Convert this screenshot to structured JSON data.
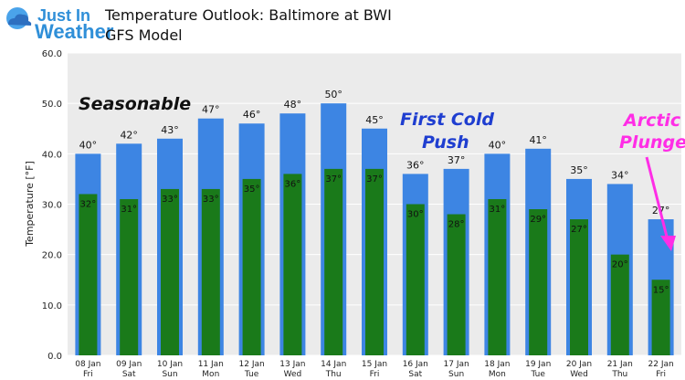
{
  "logo": {
    "line1": "Just In",
    "line2": "Weather"
  },
  "chart_data": {
    "type": "bar",
    "title": "Temperature Outlook: Baltimore at BWI",
    "subtitle": "GFS Model",
    "ylabel": "Temperature [°F]",
    "ylim": [
      0,
      60
    ],
    "yticks": [
      "0.0",
      "10.0",
      "20.0",
      "30.0",
      "40.0",
      "50.0",
      "60.0"
    ],
    "grid": true,
    "categories": [
      {
        "date": "08 Jan",
        "day": "Fri"
      },
      {
        "date": "09 Jan",
        "day": "Sat"
      },
      {
        "date": "10 Jan",
        "day": "Sun"
      },
      {
        "date": "11 Jan",
        "day": "Mon"
      },
      {
        "date": "12 Jan",
        "day": "Tue"
      },
      {
        "date": "13 Jan",
        "day": "Wed"
      },
      {
        "date": "14 Jan",
        "day": "Thu"
      },
      {
        "date": "15 Jan",
        "day": "Fri"
      },
      {
        "date": "16 Jan",
        "day": "Sat"
      },
      {
        "date": "17 Jan",
        "day": "Sun"
      },
      {
        "date": "18 Jan",
        "day": "Mon"
      },
      {
        "date": "19 Jan",
        "day": "Tue"
      },
      {
        "date": "20 Jan",
        "day": "Wed"
      },
      {
        "date": "21 Jan",
        "day": "Thu"
      },
      {
        "date": "22 Jan",
        "day": "Fri"
      }
    ],
    "series": [
      {
        "values": [
          40,
          42,
          43,
          47,
          46,
          48,
          50,
          45,
          36,
          37,
          40,
          41,
          35,
          34,
          27
        ],
        "labels": [
          "40°",
          "42°",
          "43°",
          "47°",
          "46°",
          "48°",
          "50°",
          "45°",
          "36°",
          "37°",
          "40°",
          "41°",
          "35°",
          "34°",
          "27°"
        ],
        "color": "#3d85e3"
      },
      {
        "values": [
          32,
          31,
          33,
          33,
          35,
          36,
          37,
          37,
          30,
          28,
          31,
          29,
          27,
          20,
          15
        ],
        "labels": [
          "32°",
          "31°",
          "33°",
          "33°",
          "35°",
          "36°",
          "37°",
          "37°",
          "30°",
          "28°",
          "31°",
          "29°",
          "27°",
          "20°",
          "15°"
        ],
        "color": "#1a7a1a"
      }
    ],
    "annotations": [
      {
        "text": "Seasonable",
        "color": "#111111"
      },
      {
        "text": "First Cold",
        "color": "#1f3ed0"
      },
      {
        "text": "Push",
        "color": "#1f3ed0"
      },
      {
        "text": "Arctic",
        "color": "#ff2de6"
      },
      {
        "text": "Plunge",
        "color": "#ff2de6"
      }
    ]
  }
}
